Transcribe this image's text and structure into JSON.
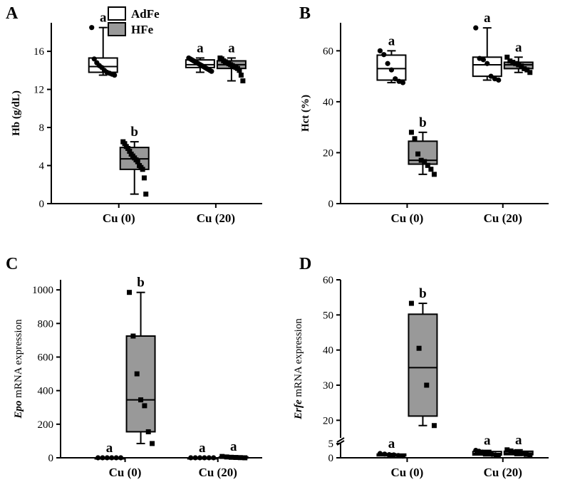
{
  "colors": {
    "adfe_fill": "#ffffff",
    "hfe_fill": "#999999",
    "axis": "#000000"
  },
  "legend": {
    "items": [
      {
        "label": "AdFe"
      },
      {
        "label": "HFe"
      }
    ]
  },
  "chart_data": [
    {
      "panel": "A",
      "type": "box",
      "categories": [
        "Cu (0)",
        "Cu (20)"
      ],
      "ylabel": "Hb (g/dL)",
      "ylim": [
        0,
        19
      ],
      "yticks": [
        0,
        4,
        8,
        12,
        16
      ],
      "series": [
        {
          "name": "AdFe",
          "boxes": [
            {
              "cat": 0,
              "min": 13.5,
              "q1": 13.8,
              "median": 14.4,
              "q3": 15.3,
              "max": 18.5,
              "letter": "a",
              "points": [
                18.5,
                15.2,
                14.8,
                14.5,
                14.3,
                14.0,
                13.8,
                13.7,
                13.6,
                13.5
              ]
            },
            {
              "cat": 1,
              "min": 13.8,
              "q1": 14.3,
              "median": 14.6,
              "q3": 15.1,
              "max": 15.3,
              "letter": "a",
              "points": [
                15.3,
                15.2,
                15.1,
                15.0,
                14.9,
                14.8,
                14.7,
                14.6,
                14.5,
                14.4,
                14.3,
                14.2,
                14.1,
                14.0,
                13.9
              ]
            }
          ]
        },
        {
          "name": "HFe",
          "boxes": [
            {
              "cat": 0,
              "min": 1.0,
              "q1": 3.6,
              "median": 4.7,
              "q3": 5.9,
              "max": 6.5,
              "letter": "b",
              "points": [
                6.5,
                6.3,
                6.0,
                5.8,
                5.5,
                5.2,
                5.0,
                4.8,
                4.6,
                4.4,
                4.0,
                3.8,
                3.6,
                2.7,
                1.0
              ]
            },
            {
              "cat": 1,
              "min": 12.9,
              "q1": 14.2,
              "median": 14.6,
              "q3": 15.0,
              "max": 15.3,
              "letter": "a",
              "points": [
                15.3,
                15.2,
                15.0,
                14.9,
                14.8,
                14.7,
                14.6,
                14.5,
                14.4,
                14.3,
                14.2,
                14.0,
                13.5,
                12.9
              ]
            }
          ]
        }
      ]
    },
    {
      "panel": "B",
      "type": "box",
      "categories": [
        "Cu (0)",
        "Cu (20)"
      ],
      "ylabel": "Hct (%)",
      "ylim": [
        0,
        71
      ],
      "yticks": [
        0,
        20,
        40,
        60
      ],
      "series": [
        {
          "name": "AdFe",
          "boxes": [
            {
              "cat": 0,
              "min": 47.5,
              "q1": 48.5,
              "median": 53.0,
              "q3": 58.3,
              "max": 60.0,
              "letter": "a",
              "points": [
                60.0,
                58.5,
                55.0,
                52.5,
                49.0,
                48.0,
                47.5
              ]
            },
            {
              "cat": 1,
              "min": 48.5,
              "q1": 50.0,
              "median": 54.5,
              "q3": 57.5,
              "max": 69.0,
              "letter": "a",
              "points": [
                69.0,
                57.0,
                56.5,
                55.0,
                50.0,
                49.0,
                48.5
              ]
            }
          ]
        },
        {
          "name": "HFe",
          "boxes": [
            {
              "cat": 0,
              "min": 11.5,
              "q1": 15.5,
              "median": 17.0,
              "q3": 24.5,
              "max": 28.0,
              "letter": "b",
              "points": [
                28.0,
                25.5,
                19.5,
                17.0,
                16.5,
                15.0,
                13.5,
                11.5
              ]
            },
            {
              "cat": 1,
              "min": 51.5,
              "q1": 53.0,
              "median": 54.5,
              "q3": 55.5,
              "max": 57.5,
              "letter": "a",
              "points": [
                57.5,
                56.0,
                55.5,
                55.0,
                54.5,
                54.0,
                53.0,
                52.5,
                51.5
              ]
            }
          ]
        }
      ]
    },
    {
      "panel": "C",
      "type": "box",
      "categories": [
        "Cu (0)",
        "Cu (20)"
      ],
      "ylabel_italic": "Epo",
      "ylabel_rest": " mRNA expression",
      "ylim": [
        0,
        1060
      ],
      "yticks": [
        0,
        200,
        400,
        600,
        800,
        1000
      ],
      "series": [
        {
          "name": "AdFe",
          "boxes": [
            {
              "cat": 0,
              "min": 0,
              "q1": 0,
              "median": 0,
              "q3": 0,
              "max": 0,
              "letter": "a",
              "points": [
                0,
                0,
                0,
                0,
                0,
                0
              ]
            },
            {
              "cat": 1,
              "min": 0,
              "q1": 0,
              "median": 0,
              "q3": 0,
              "max": 0,
              "letter": "a",
              "points": [
                0,
                0,
                0,
                0,
                0,
                0
              ]
            }
          ]
        },
        {
          "name": "HFe",
          "boxes": [
            {
              "cat": 0,
              "min": 85,
              "q1": 155,
              "median": 345,
              "q3": 725,
              "max": 985,
              "letter": "b",
              "points": [
                985,
                725,
                500,
                345,
                310,
                155,
                85
              ]
            },
            {
              "cat": 1,
              "min": 0,
              "q1": 0,
              "median": 3,
              "q3": 5,
              "max": 8,
              "letter": "a",
              "points": [
                8,
                5,
                3,
                2,
                1,
                0
              ]
            }
          ]
        }
      ]
    },
    {
      "panel": "D",
      "type": "box",
      "broken_axis": true,
      "categories": [
        "Cu (0)",
        "Cu (20)"
      ],
      "ylabel_italic": "Erfe",
      "ylabel_rest": " mRNA expression",
      "ylim_lower": [
        0,
        5
      ],
      "ylim_upper": [
        15,
        60
      ],
      "yticks_lower": [
        0,
        5
      ],
      "yticks_upper": [
        20,
        30,
        40,
        50,
        60
      ],
      "series": [
        {
          "name": "AdFe",
          "boxes": [
            {
              "cat": 0,
              "min": 0.5,
              "q1": 0.7,
              "median": 1.0,
              "q3": 1.3,
              "max": 1.5,
              "letter": "a",
              "points": [
                1.5,
                1.3,
                1.1,
                1.0,
                0.8,
                0.6
              ]
            },
            {
              "cat": 1,
              "min": 0.7,
              "q1": 1.0,
              "median": 1.5,
              "q3": 2.2,
              "max": 2.6,
              "letter": "a",
              "points": [
                2.6,
                2.3,
                2.0,
                1.7,
                1.5,
                1.2,
                1.0,
                0.8
              ]
            }
          ]
        },
        {
          "name": "HFe",
          "boxes": [
            {
              "cat": 0,
              "min": 18.5,
              "q1": 21.2,
              "median": 35.0,
              "q3": 50.2,
              "max": 53.3,
              "letter": "b",
              "points": [
                53.3,
                40.5,
                30.0,
                18.5
              ]
            },
            {
              "cat": 1,
              "min": 0.8,
              "q1": 1.1,
              "median": 1.6,
              "q3": 2.3,
              "max": 2.8,
              "letter": "a",
              "points": [
                2.8,
                2.4,
                2.0,
                1.7,
                1.5,
                1.2,
                1.0
              ]
            }
          ]
        }
      ]
    }
  ]
}
